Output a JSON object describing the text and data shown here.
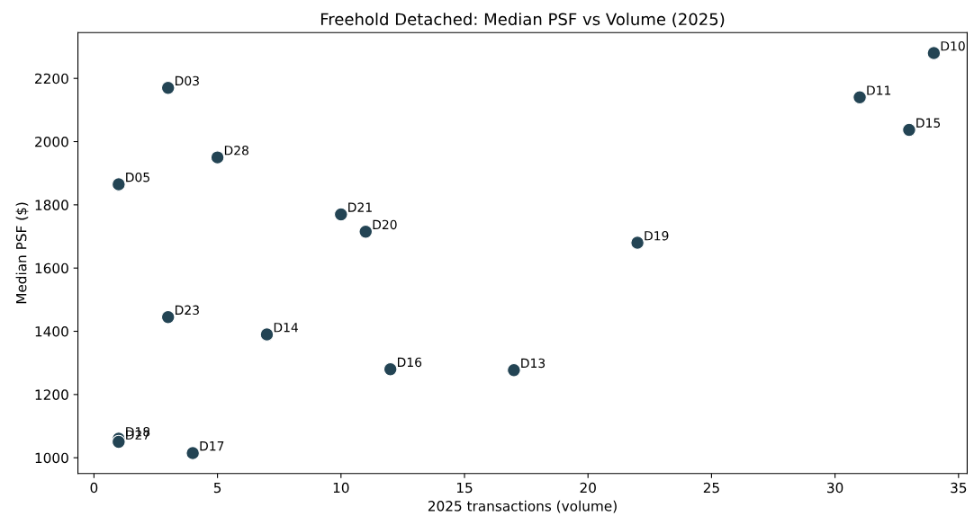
{
  "chart_data": {
    "type": "scatter",
    "title": "Freehold Detached: Median PSF vs Volume (2025)",
    "xlabel": "2025 transactions (volume)",
    "ylabel": "Median PSF ($)",
    "x": [
      34,
      31,
      33,
      3,
      5,
      1,
      10,
      11,
      22,
      3,
      7,
      12,
      17,
      1,
      1,
      4
    ],
    "series": [
      {
        "color": "#234454",
        "values": [
          2280,
          2140,
          2037,
          2170,
          1950,
          1865,
          1770,
          1715,
          1680,
          1445,
          1390,
          1280,
          1277,
          1060,
          1050,
          1015
        ]
      }
    ],
    "value_labels": [
      "D10",
      "D11",
      "D15",
      "D03",
      "D28",
      "D05",
      "D21",
      "D20",
      "D19",
      "D23",
      "D14",
      "D16",
      "D13",
      "D18",
      "D27",
      "D17"
    ],
    "marker": "circle",
    "xlim": [
      -0.65,
      35.35
    ],
    "xticks": [
      0,
      5,
      10,
      15,
      20,
      25,
      30,
      35
    ],
    "ylim": [
      950,
      2345
    ],
    "yticks": [
      1000,
      1200,
      1400,
      1600,
      1800,
      2000,
      2200
    ],
    "grid": false,
    "legend": false
  }
}
